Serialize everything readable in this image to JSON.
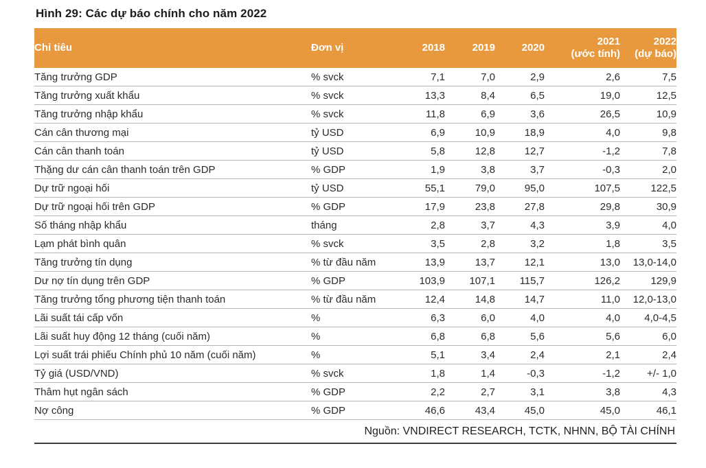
{
  "title": "Hình 29: Các dự báo chính cho năm 2022",
  "colors": {
    "header_bg": "#E8993E",
    "header_text": "#FFFFFF",
    "body_text": "#2B2B2B",
    "row_separator": "#B3B3B3",
    "bottom_rule": "#3A3A3A"
  },
  "table": {
    "headers": {
      "indicator": "Chỉ tiêu",
      "unit": "Đơn vị",
      "y2018": "2018",
      "y2019": "2019",
      "y2020": "2020",
      "y2021_line1": "2021",
      "y2021_line2": "(ước tính)",
      "y2022_line1": "2022",
      "y2022_line2": "(dự báo)"
    },
    "rows": [
      {
        "indicator": "Tăng trưởng GDP",
        "unit": "% svck",
        "v2018": "7,1",
        "v2019": "7,0",
        "v2020": "2,9",
        "v2021": "2,6",
        "v2022": "7,5"
      },
      {
        "indicator": "Tăng trưởng xuất khẩu",
        "unit": "% svck",
        "v2018": "13,3",
        "v2019": "8,4",
        "v2020": "6,5",
        "v2021": "19,0",
        "v2022": "12,5"
      },
      {
        "indicator": "Tăng trưởng nhập khẩu",
        "unit": "% svck",
        "v2018": "11,8",
        "v2019": "6,9",
        "v2020": "3,6",
        "v2021": "26,5",
        "v2022": "10,9"
      },
      {
        "indicator": "Cán cân thương mại",
        "unit": "tỷ USD",
        "v2018": "6,9",
        "v2019": "10,9",
        "v2020": "18,9",
        "v2021": "4,0",
        "v2022": "9,8"
      },
      {
        "indicator": "Cán cân thanh toán",
        "unit": "tỷ USD",
        "v2018": "5,8",
        "v2019": "12,8",
        "v2020": "12,7",
        "v2021": "-1,2",
        "v2022": "7,8"
      },
      {
        "indicator": "Thặng dư cán cân thanh toán trên GDP",
        "unit": "% GDP",
        "v2018": "1,9",
        "v2019": "3,8",
        "v2020": "3,7",
        "v2021": "-0,3",
        "v2022": "2,0"
      },
      {
        "indicator": "Dự trữ ngoại hối",
        "unit": "tỷ USD",
        "v2018": "55,1",
        "v2019": "79,0",
        "v2020": "95,0",
        "v2021": "107,5",
        "v2022": "122,5"
      },
      {
        "indicator": "Dự trữ ngoại hối trên GDP",
        "unit": "% GDP",
        "v2018": "17,9",
        "v2019": "23,8",
        "v2020": "27,8",
        "v2021": "29,8",
        "v2022": "30,9"
      },
      {
        "indicator": "Số tháng nhập khẩu",
        "unit": "tháng",
        "v2018": "2,8",
        "v2019": "3,7",
        "v2020": "4,3",
        "v2021": "3,9",
        "v2022": "4,0"
      },
      {
        "indicator": "Lạm phát bình quân",
        "unit": "% svck",
        "v2018": "3,5",
        "v2019": "2,8",
        "v2020": "3,2",
        "v2021": "1,8",
        "v2022": "3,5"
      },
      {
        "indicator": "Tăng trưởng tín dụng",
        "unit": "% từ đầu năm",
        "v2018": "13,9",
        "v2019": "13,7",
        "v2020": "12,1",
        "v2021": "13,0",
        "v2022": "13,0-14,0"
      },
      {
        "indicator": "Dư nợ tín dụng trên GDP",
        "unit": "% GDP",
        "v2018": "103,9",
        "v2019": "107,1",
        "v2020": "115,7",
        "v2021": "126,2",
        "v2022": "129,9"
      },
      {
        "indicator": "Tăng trưởng tổng phương tiện thanh toán",
        "unit": "% từ đầu năm",
        "v2018": "12,4",
        "v2019": "14,8",
        "v2020": "14,7",
        "v2021": "11,0",
        "v2022": "12,0-13,0"
      },
      {
        "indicator": "Lãi suất tái cấp vốn",
        "unit": "%",
        "v2018": "6,3",
        "v2019": "6,0",
        "v2020": "4,0",
        "v2021": "4,0",
        "v2022": "4,0-4,5"
      },
      {
        "indicator": "Lãi suất huy động 12 tháng (cuối năm)",
        "unit": "%",
        "v2018": "6,8",
        "v2019": "6,8",
        "v2020": "5,6",
        "v2021": "5,6",
        "v2022": "6,0"
      },
      {
        "indicator": "Lợi suất trái phiếu Chính phủ 10 năm (cuối năm)",
        "unit": "%",
        "v2018": "5,1",
        "v2019": "3,4",
        "v2020": "2,4",
        "v2021": "2,1",
        "v2022": "2,4"
      },
      {
        "indicator": "Tỷ giá (USD/VND)",
        "unit": "% svck",
        "v2018": "1,8",
        "v2019": "1,4",
        "v2020": "-0,3",
        "v2021": "-1,2",
        "v2022": "+/- 1,0"
      },
      {
        "indicator": "Thâm hụt ngân sách",
        "unit": "% GDP",
        "v2018": "2,2",
        "v2019": "2,7",
        "v2020": "3,1",
        "v2021": "3,8",
        "v2022": "4,3"
      },
      {
        "indicator": "Nợ công",
        "unit": "% GDP",
        "v2018": "46,6",
        "v2019": "43,4",
        "v2020": "45,0",
        "v2021": "45,0",
        "v2022": "46,1"
      }
    ]
  },
  "footer": {
    "source": "Nguồn: VNDIRECT RESEARCH, TCTK, NHNN, BỘ TÀI CHÍNH"
  }
}
